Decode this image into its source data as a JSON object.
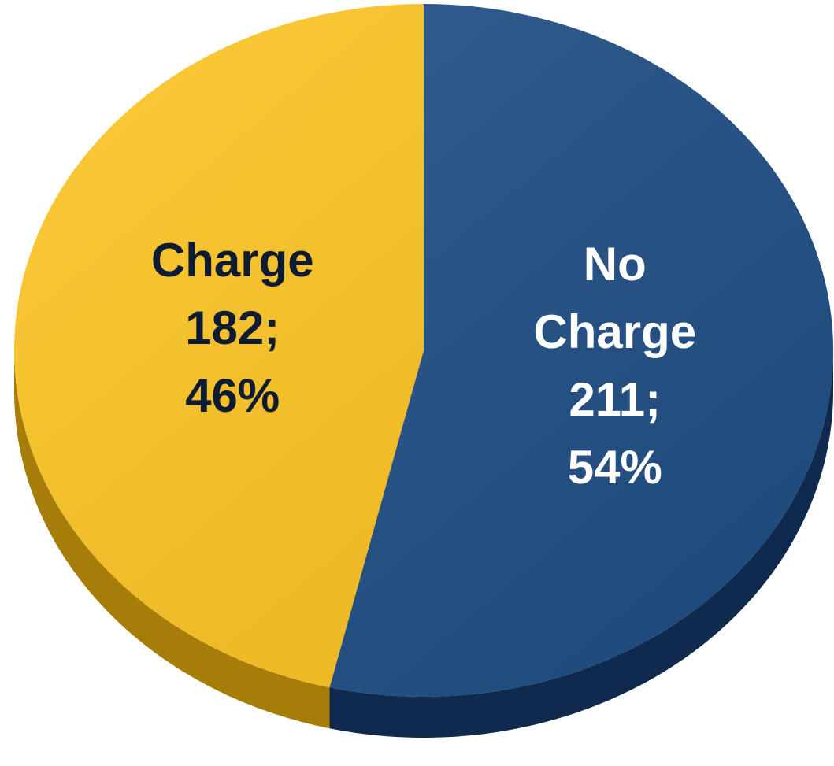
{
  "chart_data": {
    "type": "pie",
    "categories": [
      "No Charge",
      "Charge"
    ],
    "values": [
      211,
      182
    ],
    "value_labels": [
      "211;",
      "182;"
    ],
    "percent_labels": [
      "54%",
      "46%"
    ],
    "colors": [
      "#1f4e85",
      "#fdc420"
    ],
    "side_colors": [
      "#0f2a4d",
      "#a77d0a"
    ],
    "label_colors": [
      "#ffffff",
      "#0d1b33"
    ],
    "start_angle": 0,
    "direction": "clockwise"
  }
}
